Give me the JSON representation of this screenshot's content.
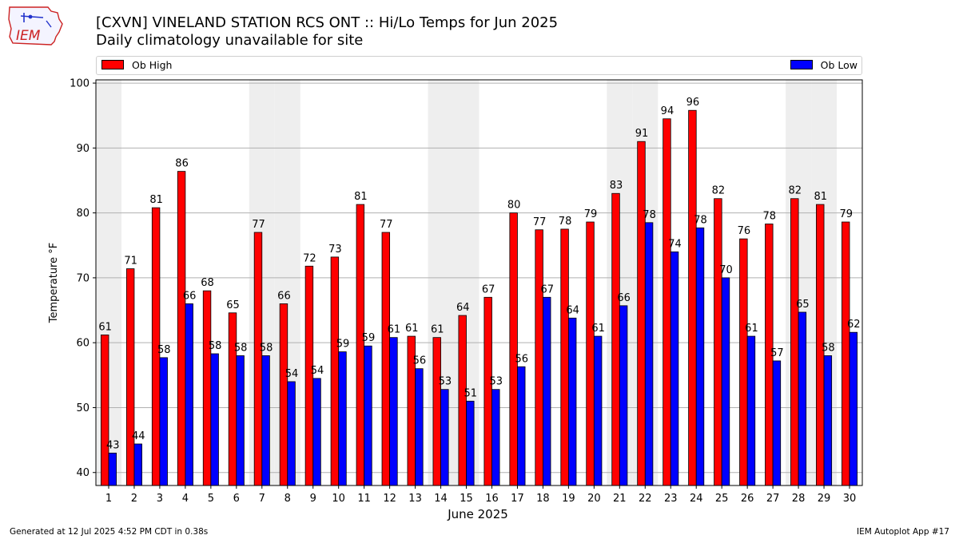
{
  "header": {
    "logo_text": "IEM",
    "title": "[CXVN] VINELAND STATION RCS  ONT :: Hi/Lo Temps for Jun 2025",
    "subtitle": "Daily climatology unavailable for site"
  },
  "footer": {
    "generated": "Generated at 12 Jul 2025 4:52 PM CDT in 0.38s",
    "app": "IEM Autoplot App #17"
  },
  "colors": {
    "high": "#ff0000",
    "low": "#0000ff",
    "weekend_band": "#eeeeee",
    "grid": "#b0b0b0"
  },
  "chart_data": {
    "type": "bar",
    "title": "[CXVN] VINELAND STATION RCS  ONT :: Hi/Lo Temps for Jun 2025",
    "subtitle": "Daily climatology unavailable for site",
    "xlabel": "June 2025",
    "ylabel": "Temperature °F",
    "ylim": [
      38,
      100.5
    ],
    "yticks": [
      40,
      50,
      60,
      70,
      80,
      90,
      100
    ],
    "grid": "horizontal",
    "legend_placement": "top",
    "categories": [
      "1",
      "2",
      "3",
      "4",
      "5",
      "6",
      "7",
      "8",
      "9",
      "10",
      "11",
      "12",
      "13",
      "14",
      "15",
      "16",
      "17",
      "18",
      "19",
      "20",
      "21",
      "22",
      "23",
      "24",
      "25",
      "26",
      "27",
      "28",
      "29",
      "30"
    ],
    "weekend_days": [
      1,
      7,
      8,
      14,
      15,
      21,
      22,
      28,
      29
    ],
    "series": [
      {
        "name": "Ob High",
        "color": "#ff0000",
        "values": [
          61.2,
          71.4,
          80.8,
          86.4,
          68.0,
          64.6,
          77.0,
          66.0,
          71.8,
          73.2,
          81.3,
          77.0,
          61.0,
          60.8,
          64.2,
          67.0,
          80.0,
          77.4,
          77.5,
          78.6,
          83.0,
          91.0,
          94.5,
          95.8,
          82.2,
          76.0,
          78.3,
          82.2,
          81.3,
          78.6
        ],
        "labels": [
          "61",
          "71",
          "81",
          "86",
          "68",
          "65",
          "77",
          "66",
          "72",
          "73",
          "81",
          "77",
          "61",
          "61",
          "64",
          "67",
          "80",
          "77",
          "78",
          "79",
          "83",
          "91",
          "94",
          "96",
          "82",
          "76",
          "78",
          "82",
          "81",
          "79"
        ]
      },
      {
        "name": "Ob Low",
        "color": "#0000ff",
        "values": [
          43.0,
          44.4,
          57.7,
          66.0,
          58.3,
          58.0,
          58.0,
          54.0,
          54.5,
          58.6,
          59.5,
          60.8,
          56.0,
          52.8,
          51.0,
          52.8,
          56.3,
          67.0,
          63.8,
          61.0,
          65.7,
          78.5,
          74.0,
          77.7,
          70.0,
          61.0,
          57.2,
          64.7,
          58.0,
          61.6
        ],
        "labels": [
          "43",
          "44",
          "58",
          "66",
          "58",
          "58",
          "58",
          "54",
          "54",
          "59",
          "59",
          "61",
          "56",
          "53",
          "51",
          "53",
          "56",
          "67",
          "64",
          "61",
          "66",
          "78",
          "74",
          "78",
          "70",
          "61",
          "57",
          "65",
          "58",
          "62"
        ]
      }
    ]
  }
}
